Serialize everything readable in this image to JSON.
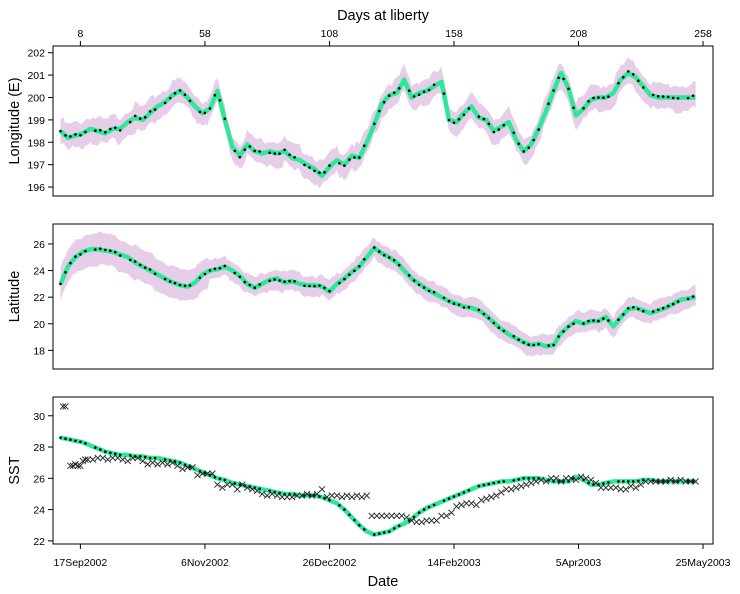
{
  "chart_data": [
    {
      "type": "line",
      "panel": "longitude",
      "ylabel": "Longitude (E)",
      "top_axis_title": "Days at liberty",
      "top_ticks": [
        "8",
        "58",
        "108",
        "158",
        "208",
        "258"
      ],
      "top_tick_days": [
        8,
        58,
        108,
        158,
        208,
        258
      ],
      "ylim": [
        195.6,
        202.3
      ],
      "yticks": [
        196,
        197,
        198,
        199,
        200,
        201,
        202
      ],
      "band_color": "#e6cde8",
      "line_color": "#2ee89a",
      "point_color": "#000000",
      "series": [
        {
          "name": "",
          "x": [
            0,
            3,
            6,
            9,
            12,
            15,
            18,
            21,
            24,
            27,
            30,
            33,
            36,
            39,
            42,
            45,
            48,
            51,
            54,
            57,
            60,
            63,
            66,
            69,
            72,
            75,
            78,
            81,
            84,
            87,
            90,
            93,
            96,
            99,
            102,
            105,
            108,
            111,
            114,
            117,
            120,
            123,
            126,
            129,
            132,
            135,
            138,
            141,
            144,
            147,
            150,
            153,
            156,
            159,
            162,
            165,
            168,
            171,
            174,
            177,
            180,
            183,
            186,
            189,
            192,
            195,
            198,
            201,
            204,
            207,
            210,
            213,
            216,
            219,
            222,
            225,
            228,
            231,
            234,
            237,
            240,
            243,
            246,
            249,
            252,
            255
          ],
          "y": [
            198.5,
            198.2,
            198.3,
            198.4,
            198.6,
            198.5,
            198.4,
            198.6,
            198.6,
            198.9,
            199.1,
            199.0,
            199.3,
            199.6,
            199.8,
            200.1,
            200.3,
            200.0,
            199.6,
            199.3,
            199.5,
            200.3,
            199.0,
            197.8,
            197.4,
            197.9,
            197.6,
            197.5,
            197.6,
            197.5,
            197.6,
            197.3,
            197.2,
            197.0,
            196.8,
            196.5,
            196.9,
            197.2,
            197.0,
            197.4,
            197.3,
            198.0,
            198.8,
            199.7,
            200.1,
            200.2,
            200.8,
            200.0,
            200.2,
            200.3,
            200.5,
            200.7,
            199.0,
            198.9,
            199.3,
            199.6,
            199.1,
            199.0,
            198.5,
            198.7,
            198.9,
            198.1,
            197.6,
            197.9,
            198.6,
            199.4,
            200.3,
            201.1,
            200.4,
            199.2,
            199.5,
            199.9,
            200.0,
            200.0,
            200.2,
            200.8,
            201.1,
            200.9,
            200.5,
            200.1,
            200.0,
            200.0,
            200.0,
            200.0,
            200.0,
            200.0
          ]
        }
      ]
    },
    {
      "type": "line",
      "panel": "latitude",
      "ylabel": "Latitude",
      "ylim": [
        16.6,
        27.5
      ],
      "yticks": [
        18,
        20,
        22,
        24,
        26
      ],
      "series": [
        {
          "name": "",
          "x": [
            0,
            3,
            6,
            9,
            12,
            15,
            18,
            21,
            24,
            27,
            30,
            33,
            36,
            39,
            42,
            45,
            48,
            51,
            54,
            57,
            60,
            63,
            66,
            69,
            72,
            75,
            78,
            81,
            84,
            87,
            90,
            93,
            96,
            99,
            102,
            105,
            108,
            111,
            114,
            117,
            120,
            123,
            126,
            129,
            132,
            135,
            138,
            141,
            144,
            147,
            150,
            153,
            156,
            159,
            162,
            165,
            168,
            171,
            174,
            177,
            180,
            183,
            186,
            189,
            192,
            195,
            198,
            201,
            204,
            207,
            210,
            213,
            216,
            219,
            222,
            225,
            228,
            231,
            234,
            237,
            240,
            243,
            246,
            249,
            252,
            255
          ],
          "y": [
            23.0,
            24.3,
            25.0,
            25.4,
            25.6,
            25.6,
            25.5,
            25.4,
            25.2,
            25.0,
            24.6,
            24.3,
            24.0,
            23.7,
            23.4,
            23.1,
            22.9,
            22.8,
            23.1,
            23.7,
            24.0,
            24.1,
            24.3,
            24.0,
            23.6,
            23.0,
            22.7,
            23.0,
            23.3,
            23.4,
            23.1,
            23.2,
            23.0,
            22.9,
            22.9,
            22.8,
            22.4,
            23.0,
            23.4,
            23.9,
            24.3,
            25.0,
            25.7,
            25.3,
            25.0,
            24.6,
            24.0,
            23.4,
            23.0,
            22.6,
            22.3,
            22.0,
            21.7,
            21.5,
            21.3,
            21.2,
            21.0,
            20.6,
            20.1,
            19.6,
            19.2,
            18.9,
            18.6,
            18.4,
            18.5,
            18.3,
            18.4,
            19.3,
            19.8,
            20.2,
            20.0,
            20.2,
            20.2,
            20.5,
            19.8,
            20.5,
            21.1,
            21.2,
            21.0,
            20.8,
            21.0,
            21.2,
            21.5,
            21.8,
            21.9,
            22.0
          ]
        }
      ]
    },
    {
      "type": "line",
      "panel": "sst",
      "ylabel": "SST",
      "xlabel": "Date",
      "ylim": [
        21.8,
        31.2
      ],
      "yticks": [
        22,
        24,
        26,
        28,
        30
      ],
      "date_ticks": [
        "17Sep2002",
        "6Nov2002",
        "26Dec2002",
        "14Feb2003",
        "5Apr2003",
        "25May2003"
      ],
      "date_tick_days": [
        8,
        58,
        108,
        158,
        208,
        258
      ],
      "series": [
        {
          "name": "",
          "x": [
            0,
            3,
            6,
            9,
            12,
            15,
            18,
            21,
            24,
            27,
            30,
            33,
            36,
            39,
            42,
            45,
            48,
            51,
            54,
            57,
            60,
            63,
            66,
            69,
            72,
            75,
            78,
            81,
            84,
            87,
            90,
            93,
            96,
            99,
            102,
            105,
            108,
            111,
            114,
            117,
            120,
            123,
            126,
            129,
            132,
            135,
            138,
            141,
            144,
            147,
            150,
            153,
            156,
            159,
            162,
            165,
            168,
            171,
            174,
            177,
            180,
            183,
            186,
            189,
            192,
            195,
            198,
            201,
            204,
            207,
            210,
            213,
            216,
            219,
            222,
            225,
            228,
            231,
            234,
            237,
            240,
            243,
            246,
            249,
            252,
            255
          ],
          "y": [
            28.6,
            28.5,
            28.4,
            28.3,
            28.1,
            27.9,
            27.7,
            27.6,
            27.5,
            27.5,
            27.4,
            27.4,
            27.3,
            27.3,
            27.2,
            27.1,
            27.0,
            26.8,
            26.6,
            26.4,
            26.2,
            26.0,
            25.9,
            25.7,
            25.6,
            25.5,
            25.4,
            25.3,
            25.2,
            25.1,
            25.0,
            25.0,
            24.9,
            24.9,
            24.9,
            24.8,
            24.6,
            24.4,
            24.0,
            23.5,
            23.0,
            22.6,
            22.4,
            22.5,
            22.6,
            22.9,
            23.1,
            23.4,
            23.8,
            24.1,
            24.3,
            24.5,
            24.7,
            24.9,
            25.1,
            25.3,
            25.5,
            25.6,
            25.7,
            25.8,
            25.8,
            25.9,
            26.0,
            26.0,
            26.0,
            25.9,
            25.8,
            25.8,
            25.8,
            26.1,
            25.9,
            25.6,
            25.6,
            25.7,
            25.8,
            25.8,
            25.8,
            25.8,
            25.9,
            25.9,
            25.8,
            25.8,
            25.8,
            25.8,
            25.8,
            25.8
          ]
        },
        {
          "name": "",
          "marker": "x",
          "x": [
            1,
            2,
            4,
            5,
            6,
            7,
            8,
            9,
            10,
            11,
            13,
            15,
            17,
            19,
            21,
            23,
            25,
            27,
            29,
            31,
            33,
            35,
            37,
            39,
            41,
            43,
            45,
            47,
            49,
            51,
            53,
            55,
            57,
            59,
            61,
            63,
            65,
            67,
            69,
            71,
            73,
            75,
            77,
            79,
            81,
            83,
            85,
            87,
            89,
            91,
            93,
            95,
            97,
            99,
            101,
            103,
            105,
            107,
            109,
            111,
            113,
            115,
            117,
            119,
            121,
            123,
            125,
            127,
            129,
            131,
            133,
            135,
            137,
            139,
            141,
            143,
            145,
            147,
            149,
            151,
            153,
            155,
            157,
            159,
            161,
            163,
            165,
            167,
            169,
            171,
            173,
            175,
            177,
            179,
            181,
            183,
            185,
            187,
            189,
            191,
            193,
            195,
            197,
            199,
            201,
            203,
            205,
            207,
            209,
            211,
            213,
            215,
            217,
            219,
            221,
            223,
            225,
            227,
            229,
            231,
            233,
            235,
            237,
            239,
            241,
            243,
            245,
            247,
            249,
            251,
            253,
            255
          ],
          "y": [
            30.6,
            30.6,
            26.8,
            26.8,
            26.9,
            26.8,
            26.8,
            27.1,
            27.2,
            27.2,
            27.2,
            27.3,
            27.3,
            27.2,
            27.3,
            27.3,
            27.2,
            27.1,
            27.3,
            27.3,
            27.1,
            26.9,
            27.0,
            26.9,
            27.0,
            26.9,
            27.0,
            26.8,
            26.6,
            26.7,
            26.7,
            26.2,
            26.3,
            26.3,
            26.3,
            25.6,
            25.4,
            25.6,
            25.6,
            25.3,
            25.6,
            25.4,
            25.3,
            25.2,
            25.0,
            24.9,
            25.0,
            24.9,
            24.8,
            24.8,
            24.8,
            24.9,
            24.9,
            25.0,
            24.9,
            25.0,
            25.3,
            24.8,
            24.9,
            24.9,
            24.8,
            24.9,
            24.8,
            24.9,
            24.8,
            24.9,
            23.6,
            23.6,
            23.6,
            23.6,
            23.6,
            23.6,
            23.6,
            23.5,
            23.3,
            23.2,
            23.2,
            23.3,
            23.3,
            23.3,
            23.6,
            23.6,
            23.8,
            24.2,
            24.3,
            24.4,
            24.4,
            24.3,
            24.6,
            24.7,
            24.8,
            24.9,
            25.1,
            25.3,
            25.3,
            25.4,
            25.5,
            25.6,
            25.7,
            25.8,
            25.9,
            25.8,
            26.0,
            26.0,
            25.8,
            26.0,
            26.0,
            25.9,
            26.1,
            26.0,
            25.9,
            25.7,
            25.4,
            25.4,
            25.4,
            25.4,
            25.3,
            25.3,
            25.5,
            25.4,
            25.6,
            25.8,
            25.8,
            25.8,
            25.8,
            25.8,
            25.9,
            25.8,
            25.9,
            25.8,
            25.8,
            25.8
          ]
        }
      ]
    }
  ]
}
